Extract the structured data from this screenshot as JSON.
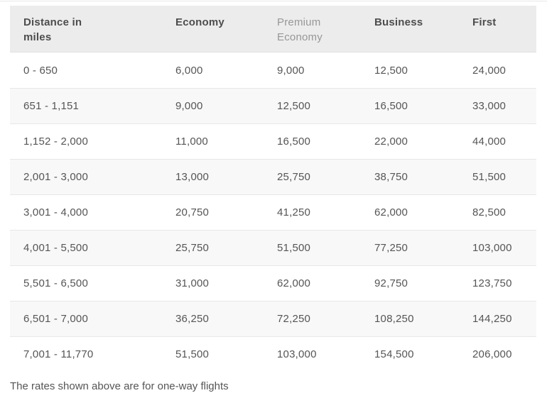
{
  "colors": {
    "page_background": "#ffffff",
    "header_background": "#ececec",
    "alt_row_background": "#f8f8f8",
    "row_divider": "#e7e7e7",
    "header_text": "#4d4d4d",
    "muted_header_text": "#979797",
    "cell_text": "#555555"
  },
  "table": {
    "columns": [
      {
        "label": "Distance in miles",
        "muted": false,
        "slug": "distance-in-miles"
      },
      {
        "label": "Economy",
        "muted": false,
        "slug": "economy"
      },
      {
        "label": "Premium Economy",
        "muted": true,
        "slug": "premium-economy"
      },
      {
        "label": "Business",
        "muted": false,
        "slug": "business"
      },
      {
        "label": "First",
        "muted": false,
        "slug": "first"
      }
    ],
    "rows": [
      [
        "0 - 650",
        "6,000",
        "9,000",
        "12,500",
        "24,000"
      ],
      [
        "651 - 1,151",
        "9,000",
        "12,500",
        "16,500",
        "33,000"
      ],
      [
        "1,152 - 2,000",
        "11,000",
        "16,500",
        "22,000",
        "44,000"
      ],
      [
        "2,001 - 3,000",
        "13,000",
        "25,750",
        "38,750",
        "51,500"
      ],
      [
        "3,001 - 4,000",
        "20,750",
        "41,250",
        "62,000",
        "82,500"
      ],
      [
        "4,001 - 5,500",
        "25,750",
        "51,500",
        "77,250",
        "103,000"
      ],
      [
        "5,501 - 6,500",
        "31,000",
        "62,000",
        "92,750",
        "123,750"
      ],
      [
        "6,501 - 7,000",
        "36,250",
        "72,250",
        "108,250",
        "144,250"
      ],
      [
        "7,001 - 11,770",
        "51,500",
        "103,000",
        "154,500",
        "206,000"
      ]
    ]
  },
  "footnote": {
    "text": "The rates shown above are for one-way flights"
  }
}
